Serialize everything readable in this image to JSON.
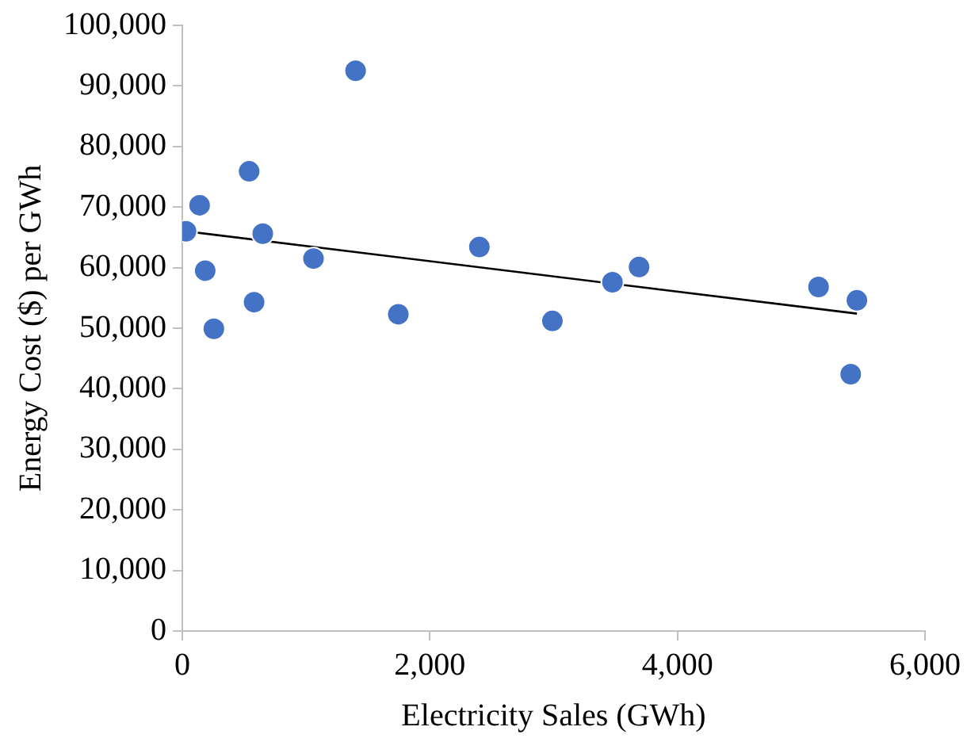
{
  "chart_data": {
    "type": "scatter",
    "xlabel": "Electricity Sales (GWh)",
    "ylabel": "Energy Cost ($) per GWh",
    "xlim": [
      0,
      6000
    ],
    "xticks": [
      {
        "value": 0,
        "label": "0"
      },
      {
        "value": 2000,
        "label": "2,000"
      },
      {
        "value": 4000,
        "label": "4,000"
      },
      {
        "value": 6000,
        "label": "6,000"
      }
    ],
    "ylim": [
      0,
      100000
    ],
    "yticks": [
      {
        "value": 0,
        "label": "0"
      },
      {
        "value": 10000,
        "label": "10,000"
      },
      {
        "value": 20000,
        "label": "20,000"
      },
      {
        "value": 30000,
        "label": "30,000"
      },
      {
        "value": 40000,
        "label": "40,000"
      },
      {
        "value": 50000,
        "label": "50,000"
      },
      {
        "value": 60000,
        "label": "60,000"
      },
      {
        "value": 70000,
        "label": "70,000"
      },
      {
        "value": 80000,
        "label": "80,000"
      },
      {
        "value": 90000,
        "label": "90,000"
      },
      {
        "value": 100000,
        "label": "100,000"
      }
    ],
    "grid": false,
    "legend": false,
    "marker": "circle",
    "series": [
      {
        "color": "#4472c4",
        "x": [
          30,
          140,
          185,
          255,
          540,
          580,
          650,
          1060,
          1400,
          1745,
          2400,
          2990,
          3475,
          3690,
          5140,
          5450,
          5400
        ],
        "values": [
          66000,
          70300,
          59500,
          49900,
          75900,
          54300,
          65600,
          61500,
          92500,
          52300,
          63400,
          51200,
          57600,
          60100,
          56800,
          54600,
          42400
        ]
      },
      {
        "type": "line",
        "color": "#000000",
        "marker": "none",
        "x": [
          30,
          5450
        ],
        "values": [
          66000,
          52400
        ]
      }
    ]
  }
}
